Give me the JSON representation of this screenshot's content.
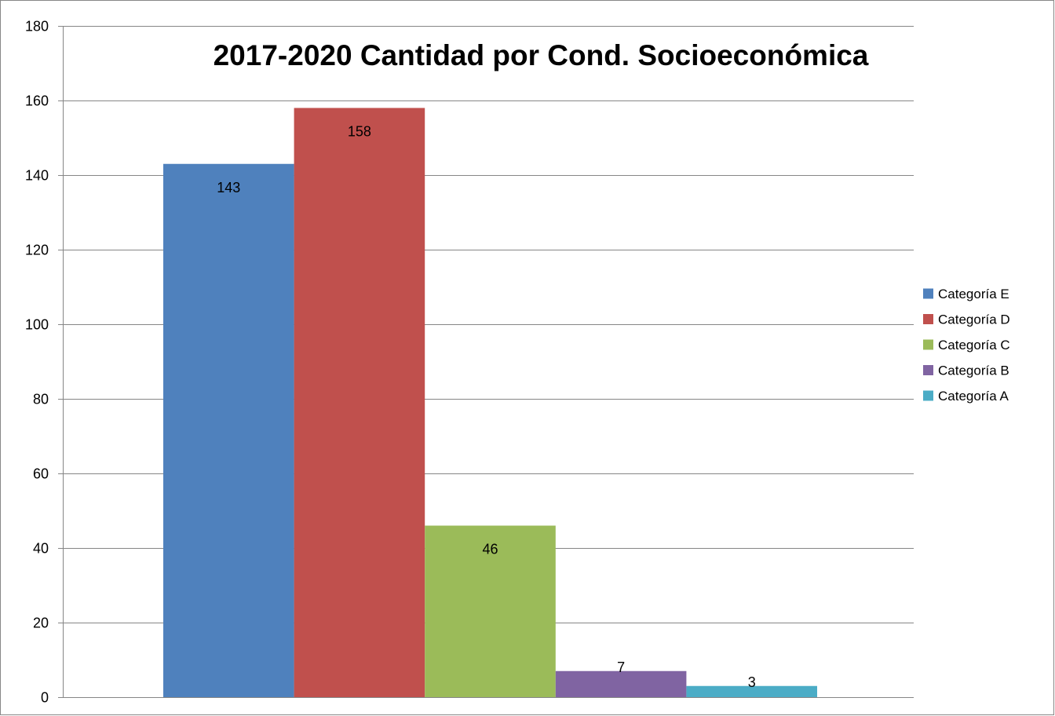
{
  "chart_data": {
    "type": "bar",
    "title": "2017-2020 Cantidad por Cond. Socioeconómica",
    "xlabel": "",
    "ylabel": "",
    "ylim": [
      0,
      180
    ],
    "yticks": [
      0,
      20,
      40,
      60,
      80,
      100,
      120,
      140,
      160,
      180
    ],
    "grid": true,
    "legend_position": "right",
    "series": [
      {
        "name": "Categoría E",
        "value": 143,
        "label": "143",
        "color": "#4F81BD"
      },
      {
        "name": "Categoría D",
        "value": 158,
        "label": "158",
        "color": "#C0504D"
      },
      {
        "name": "Categoría C",
        "value": 46,
        "label": "46",
        "color": "#9BBB59"
      },
      {
        "name": "Categoría B",
        "value": 7,
        "label": "7",
        "color": "#8064A2"
      },
      {
        "name": "Categoría A",
        "value": 3,
        "label": "3",
        "color": "#4BACC6"
      }
    ]
  }
}
